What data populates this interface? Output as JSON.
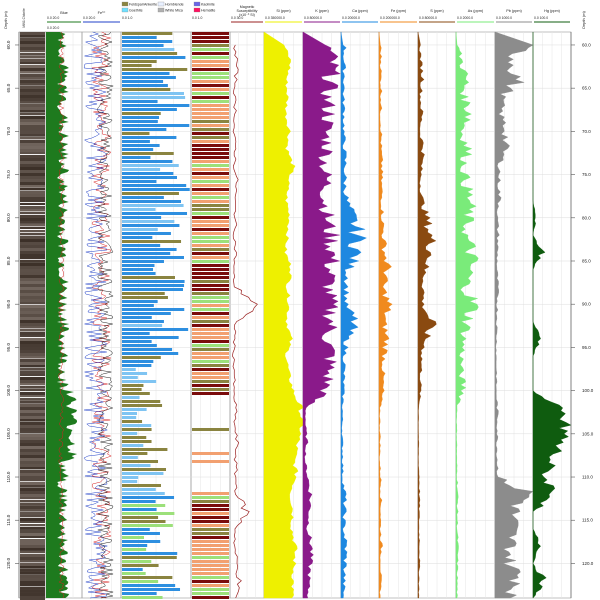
{
  "depth_axis": {
    "ticks": [
      {
        "depth": 60,
        "label": "60.0"
      },
      {
        "depth": 65,
        "label": "65.0"
      },
      {
        "depth": 70,
        "label": "70.0"
      },
      {
        "depth": 75,
        "label": "75.0"
      },
      {
        "depth": 80,
        "label": "80.0"
      },
      {
        "depth": 85,
        "label": "85.0"
      },
      {
        "depth": 90,
        "label": "90.0"
      },
      {
        "depth": 95,
        "label": "95.0"
      },
      {
        "depth": 100,
        "label": "100.0"
      },
      {
        "depth": 105,
        "label": "105.0"
      },
      {
        "depth": 110,
        "label": "110.0"
      },
      {
        "depth": 115,
        "label": "115.0"
      },
      {
        "depth": 120,
        "label": "120.0"
      }
    ],
    "left_title": "Depth (m)",
    "right_title": "Depth (m)"
  },
  "colors": {
    "core": "#3a3128",
    "green": "#1e7a1e",
    "red": "#d62020",
    "blue": "#2040c8",
    "dark": "#222222",
    "classblue": "#2e8fe0",
    "classlight": "#7fc4f2",
    "olive": "#8a8440",
    "lime": "#9ce07a",
    "maroon": "#7a0c0c",
    "salmon": "#f2a070",
    "mag": "#9a2020",
    "si": "#eef000",
    "k": "#8a1a8a",
    "ca": "#1e88e0",
    "fe": "#f08a1e",
    "s": "#8a4a10",
    "as": "#7aeb7a",
    "pb": "#8c8c8c",
    "hg": "#0f5c0f"
  },
  "legend": {
    "items": [
      {
        "label": "Feldspar/Ankerite",
        "color": "#8a8440"
      },
      {
        "label": "Hornblende",
        "color": "#e8f0ff"
      },
      {
        "label": "Kaolinite",
        "color": "#6a66e6"
      },
      {
        "label": "Goethite",
        "color": "#70e0ff"
      },
      {
        "label": "White Mica",
        "color": "#b0b0b0"
      },
      {
        "label": "Hematite",
        "color": "#ff1060"
      }
    ]
  },
  "tracks": [
    {
      "id": "core",
      "title": "MW1 Chlorite",
      "scale": ""
    },
    {
      "id": "gamma",
      "title": "Blue",
      "scale": "0.0      20.0",
      "scale2": "0.0      20.0"
    },
    {
      "id": "ratios",
      "title": "Fe³⁺",
      "scale": "0.0      20.0"
    },
    {
      "id": "minerals",
      "title": "",
      "scale": "0.0                    1.0"
    },
    {
      "id": "class",
      "title": "",
      "scale": "0.0          1.0"
    },
    {
      "id": "mag",
      "title": "Magnetic Susceptibility (x10⁻³ SI)",
      "scale": "0.0        30.0"
    },
    {
      "id": "si",
      "title": "Si (ppm)",
      "scale": "0.0   350000.0"
    },
    {
      "id": "k",
      "title": "K (ppm)",
      "scale": "0.0   80000.0"
    },
    {
      "id": "ca",
      "title": "Ca (ppm)",
      "scale": "0.0   20000.0"
    },
    {
      "id": "fe",
      "title": "Fe (ppm)",
      "scale": "0.0   200000.0"
    },
    {
      "id": "s",
      "title": "S (ppm)",
      "scale": "0.0   80000.0"
    },
    {
      "id": "as",
      "title": "As (ppm)",
      "scale": "0.0   2000.0"
    },
    {
      "id": "pb",
      "title": "Pb (ppm)",
      "scale": "0.0   1000.0"
    },
    {
      "id": "hg",
      "title": "Hg (ppm)",
      "scale": "0.0   100.0"
    }
  ],
  "chart_data": {
    "type": "area",
    "depth_range": [
      58.5,
      124
    ],
    "xlim": {
      "si": [
        0,
        350000
      ],
      "k": [
        0,
        80000
      ],
      "ca": [
        0,
        20000
      ],
      "fe": [
        0,
        200000
      ],
      "s": [
        0,
        80000
      ],
      "as": [
        0,
        2000
      ],
      "pb": [
        0,
        1000
      ],
      "hg": [
        0,
        100
      ],
      "mag": [
        0,
        30
      ]
    },
    "series": [
      {
        "id": "si",
        "depth": [
          60,
          62,
          64,
          66,
          68,
          70,
          72,
          74,
          76,
          78,
          80,
          82,
          84,
          86,
          88,
          90,
          92,
          94,
          96,
          98,
          100,
          102,
          104,
          106,
          108,
          110,
          112,
          114,
          116,
          118,
          120,
          122,
          124
        ],
        "values": [
          180000,
          240000,
          200000,
          210000,
          195000,
          230000,
          205000,
          260000,
          215000,
          200000,
          230000,
          210000,
          190000,
          250000,
          210000,
          225000,
          205000,
          240000,
          200000,
          220000,
          260000,
          330000,
          340000,
          300000,
          270000,
          290000,
          240000,
          260000,
          250000,
          280000,
          270000,
          260000,
          250000
        ]
      },
      {
        "id": "k",
        "depth": [
          60,
          62,
          64,
          66,
          68,
          70,
          72,
          74,
          76,
          78,
          80,
          82,
          84,
          86,
          88,
          90,
          92,
          94,
          96,
          98,
          100,
          102,
          104,
          106,
          108,
          110,
          112,
          114,
          116,
          118,
          120,
          122,
          124
        ],
        "values": [
          52000,
          60000,
          58000,
          50000,
          55000,
          48000,
          52000,
          45000,
          50000,
          47000,
          51000,
          58000,
          62000,
          57000,
          54000,
          56000,
          60000,
          52000,
          58000,
          53000,
          48000,
          6000,
          5000,
          8000,
          4000,
          10000,
          16000,
          14000,
          10000,
          18000,
          15000,
          12000,
          10000
        ]
      },
      {
        "id": "ca",
        "depth": [
          60,
          62,
          64,
          66,
          68,
          70,
          72,
          74,
          76,
          78,
          80,
          82,
          84,
          86,
          88,
          90,
          92,
          94,
          96,
          98,
          100,
          102,
          104,
          106,
          108,
          110,
          112,
          114,
          116,
          118,
          120,
          122,
          124
        ],
        "values": [
          2000,
          1500,
          1800,
          1200,
          1600,
          1400,
          1800,
          2200,
          2000,
          3000,
          6000,
          9000,
          8000,
          4000,
          3000,
          2500,
          7000,
          3000,
          2000,
          1500,
          1200,
          800,
          600,
          700,
          900,
          800,
          2000,
          1800,
          1500,
          2500,
          2200,
          1600,
          1200
        ]
      },
      {
        "id": "fe",
        "depth": [
          60,
          62,
          64,
          66,
          68,
          70,
          72,
          74,
          76,
          78,
          80,
          82,
          84,
          86,
          88,
          90,
          92,
          94,
          96,
          98,
          100,
          102,
          104,
          106,
          108,
          110,
          112,
          114,
          116,
          118,
          120,
          122,
          124
        ],
        "values": [
          8000,
          10000,
          9000,
          12000,
          8000,
          11000,
          10000,
          14000,
          12000,
          15000,
          18000,
          22000,
          30000,
          45000,
          20000,
          50000,
          25000,
          40000,
          28000,
          20000,
          18000,
          5000,
          4000,
          6000,
          3000,
          8000,
          10000,
          9000,
          7000,
          12000,
          10000,
          8000,
          6000
        ]
      },
      {
        "id": "s",
        "depth": [
          60,
          62,
          64,
          66,
          68,
          70,
          72,
          74,
          76,
          78,
          80,
          82,
          84,
          86,
          88,
          90,
          92,
          94,
          96,
          98,
          100,
          102,
          104,
          106,
          108,
          110,
          112,
          114,
          116,
          118,
          120,
          122,
          124
        ],
        "values": [
          4000,
          6000,
          10000,
          5000,
          8000,
          4000,
          12000,
          7000,
          5000,
          9000,
          18000,
          26000,
          30000,
          14000,
          12000,
          10000,
          28000,
          16000,
          8000,
          6000,
          5000,
          1500,
          1000,
          1200,
          800,
          2500,
          3000,
          2500,
          1800,
          3500,
          2800,
          2000,
          1500
        ]
      },
      {
        "id": "as",
        "depth": [
          60,
          62,
          64,
          66,
          68,
          70,
          72,
          74,
          76,
          78,
          80,
          82,
          84,
          86,
          88,
          90,
          92,
          94,
          96,
          98,
          100,
          102,
          104,
          106,
          108,
          110,
          112,
          114,
          116,
          118,
          120,
          122,
          124
        ],
        "values": [
          100,
          300,
          500,
          400,
          800,
          300,
          600,
          400,
          500,
          700,
          600,
          500,
          800,
          700,
          500,
          900,
          600,
          400,
          300,
          250,
          400,
          50,
          30,
          40,
          30,
          60,
          80,
          70,
          60,
          90,
          70,
          60,
          50
        ]
      },
      {
        "id": "pb",
        "depth": [
          60,
          62,
          64,
          66,
          68,
          70,
          72,
          74,
          76,
          78,
          80,
          82,
          84,
          86,
          88,
          90,
          92,
          94,
          96,
          98,
          100,
          102,
          104,
          106,
          108,
          110,
          112,
          114,
          116,
          118,
          120,
          122,
          124
        ],
        "values": [
          700,
          500,
          600,
          200,
          150,
          300,
          250,
          120,
          100,
          120,
          60,
          80,
          60,
          50,
          70,
          60,
          50,
          40,
          30,
          40,
          30,
          60,
          70,
          50,
          60,
          80,
          900,
          500,
          450,
          420,
          380,
          700,
          400
        ]
      },
      {
        "id": "hg",
        "depth": [
          60,
          62,
          64,
          66,
          68,
          70,
          72,
          74,
          76,
          78,
          80,
          82,
          84,
          86,
          88,
          90,
          92,
          94,
          96,
          98,
          100,
          102,
          104,
          106,
          108,
          110,
          112,
          114,
          116,
          118,
          120,
          122,
          124
        ],
        "values": [
          0,
          0,
          0,
          0,
          0,
          0,
          0,
          0,
          0,
          0,
          8,
          0,
          25,
          0,
          0,
          0,
          0,
          20,
          0,
          0,
          0,
          60,
          90,
          70,
          50,
          30,
          60,
          0,
          0,
          20,
          0,
          30,
          0
        ]
      },
      {
        "id": "mag",
        "depth": [
          60,
          62,
          64,
          66,
          68,
          70,
          72,
          74,
          76,
          78,
          80,
          82,
          84,
          86,
          88,
          90,
          92,
          94,
          96,
          98,
          100,
          102,
          104,
          106,
          108,
          110,
          112,
          114,
          116,
          118,
          120,
          122,
          124
        ],
        "values": [
          4,
          6,
          5,
          4,
          5,
          3,
          5,
          4,
          6,
          4,
          5,
          4,
          5,
          3,
          4,
          25,
          5,
          4,
          3,
          4,
          3,
          5,
          4,
          6,
          5,
          5,
          6,
          15,
          5,
          4,
          6,
          8,
          5
        ]
      }
    ]
  }
}
